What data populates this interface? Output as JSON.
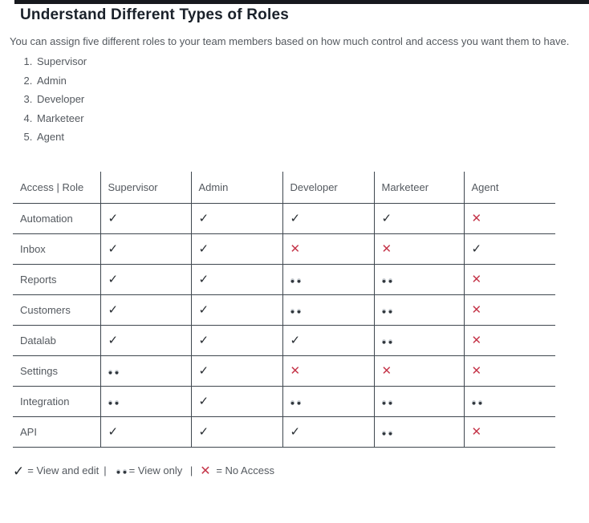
{
  "page": {
    "title": "Understand Different Types of Roles",
    "intro": "You can assign five different roles to your team members based on how much control and access you want them to have."
  },
  "roles_list": [
    "Supervisor",
    "Admin",
    "Developer",
    "Marketeer",
    "Agent"
  ],
  "table": {
    "headers": [
      "Access | Role",
      "Supervisor",
      "Admin",
      "Developer",
      "Marketeer",
      "Agent"
    ],
    "rows": [
      {
        "feature": "Automation",
        "access": [
          "check",
          "check",
          "check",
          "check",
          "cross"
        ]
      },
      {
        "feature": "Inbox",
        "access": [
          "check",
          "check",
          "cross",
          "cross",
          "check"
        ]
      },
      {
        "feature": "Reports",
        "access": [
          "check",
          "check",
          "view",
          "view",
          "cross"
        ]
      },
      {
        "feature": "Customers",
        "access": [
          "check",
          "check",
          "view",
          "view",
          "cross"
        ]
      },
      {
        "feature": "Datalab",
        "access": [
          "check",
          "check",
          "check",
          "view",
          "cross"
        ]
      },
      {
        "feature": "Settings",
        "access": [
          "view",
          "check",
          "cross",
          "cross",
          "cross"
        ]
      },
      {
        "feature": "Integration",
        "access": [
          "view",
          "check",
          "view",
          "view",
          "view"
        ]
      },
      {
        "feature": "API",
        "access": [
          "check",
          "check",
          "check",
          "view",
          "cross"
        ]
      }
    ]
  },
  "legend": {
    "check_label": "= View and edit",
    "view_label": "= View only",
    "cross_label": "= No Access",
    "separator": "|"
  },
  "symbols": {
    "check": "✓",
    "cross": "✕"
  },
  "colors": {
    "bar": "#17191e",
    "heading": "#1a212a",
    "text": "#54595f",
    "border": "#3f474f",
    "check": "#272c31",
    "cross": "#c5364a"
  }
}
